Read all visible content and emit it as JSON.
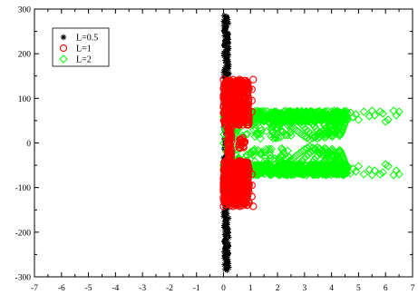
{
  "chart_data": {
    "type": "scatter",
    "title": "",
    "xlabel": "",
    "ylabel": "",
    "xlim": [
      -7,
      7
    ],
    "ylim": [
      -300,
      300
    ],
    "xticks": [
      -7,
      -6,
      -5,
      -4,
      -3,
      -2,
      -1,
      0,
      1,
      2,
      3,
      4,
      5,
      6,
      7
    ],
    "yticks": [
      -300,
      -200,
      -100,
      0,
      100,
      200,
      300
    ],
    "grid": false,
    "legend_position": "top-left",
    "series": [
      {
        "name": "L=0.5",
        "marker": "asterisk",
        "color": "#000000",
        "description": "dense column of points at x between 0 and 0.2 spanning y from -285 to 285",
        "x_range": [
          0.0,
          0.2
        ],
        "y_range": [
          -285,
          285
        ]
      },
      {
        "name": "L=1",
        "marker": "circle",
        "color": "#ff0000",
        "description": "dense block at x 0 to 1 for y in [-140,-40] and [40,140]; sparse points near x=0.2 for |y|<40",
        "x_range": [
          0.0,
          1.1
        ],
        "y_range": [
          -142,
          142
        ]
      },
      {
        "name": "L=2",
        "marker": "diamond",
        "color": "#00ff00",
        "description": "dense bands at y approx +/-50 to +/-72 extending from x=0 to x=6.5, converging branches between x=2.5 and 5",
        "x_range": [
          0.0,
          6.6
        ],
        "y_range": [
          -72,
          72
        ]
      }
    ]
  }
}
